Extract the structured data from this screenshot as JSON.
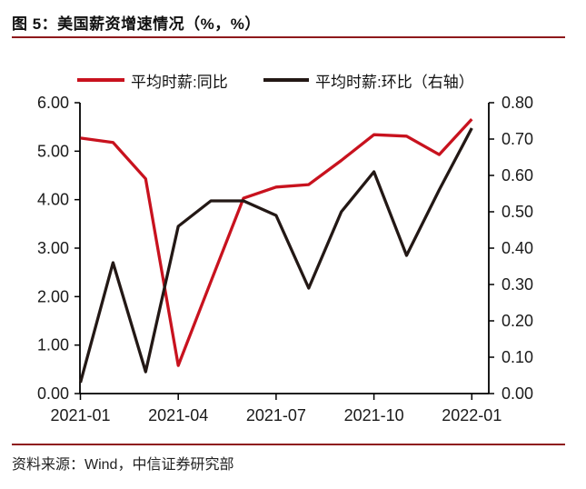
{
  "header": {
    "title": "图 5：美国薪资增速情况（%，%）"
  },
  "footer": {
    "source": "资料来源：Wind，中信证券研究部"
  },
  "chart_data": {
    "type": "line",
    "title": "美国薪资增速情况（%，%）",
    "x_categories": [
      "2021-01",
      "2021-02",
      "2021-03",
      "2021-04",
      "2021-05",
      "2021-06",
      "2021-07",
      "2021-08",
      "2021-09",
      "2021-10",
      "2021-11",
      "2021-12",
      "2022-01"
    ],
    "x_tick_indices": [
      0,
      3,
      6,
      9,
      12
    ],
    "x_tick_labels": [
      "2021-01",
      "2021-04",
      "2021-07",
      "2021-10",
      "2022-01"
    ],
    "series": [
      {
        "name": "平均时薪:同比",
        "axis": "left",
        "color": "#c8121e",
        "values": [
          5.27,
          5.18,
          4.43,
          0.58,
          2.31,
          4.03,
          4.26,
          4.31,
          4.81,
          5.34,
          5.31,
          4.93,
          5.66
        ]
      },
      {
        "name": "平均时薪:环比（右轴）",
        "axis": "right",
        "color": "#231815",
        "values": [
          0.03,
          0.36,
          0.06,
          0.46,
          0.53,
          0.53,
          0.49,
          0.29,
          0.5,
          0.61,
          0.38,
          0.56,
          0.73
        ]
      }
    ],
    "left_axis": {
      "min": 0,
      "max": 6,
      "tick_labels": [
        "6.00",
        "5.00",
        "4.00",
        "3.00",
        "2.00",
        "1.00",
        "0.00"
      ]
    },
    "right_axis": {
      "min": 0,
      "max": 0.8,
      "tick_labels": [
        "0.80",
        "0.70",
        "0.60",
        "0.50",
        "0.40",
        "0.30",
        "0.20",
        "0.10",
        "0.00"
      ]
    },
    "grid": false,
    "legend_position": "top"
  }
}
